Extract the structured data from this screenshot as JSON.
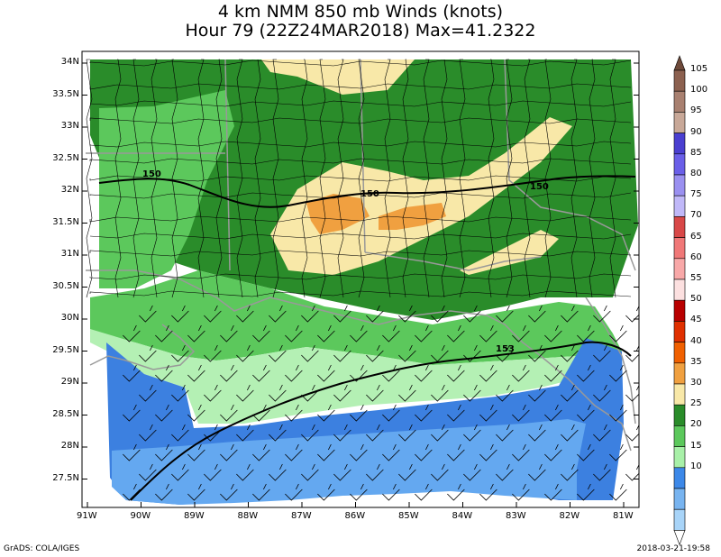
{
  "title": {
    "line1": "4 km NMM 850 mb Winds (knots)",
    "line2": "Hour 79 (22Z24MAR2018) Max=41.2322"
  },
  "footer": {
    "credit": "GrADS: COLA/IGES",
    "timestamp": "2018-03-21-19:58"
  },
  "axes": {
    "lat_labels": [
      "34N",
      "33.5N",
      "33N",
      "32.5N",
      "32N",
      "31.5N",
      "31N",
      "30.5N",
      "30N",
      "29.5N",
      "29N",
      "28.5N",
      "28N",
      "27.5N"
    ],
    "lon_labels": [
      "91W",
      "90W",
      "89W",
      "88W",
      "87W",
      "86W",
      "85W",
      "84W",
      "83W",
      "82W",
      "81W"
    ]
  },
  "contour_labels": [
    "150",
    "150",
    "150",
    "153"
  ],
  "colorbar": {
    "levels": [
      "105",
      "100",
      "95",
      "90",
      "85",
      "80",
      "75",
      "70",
      "65",
      "60",
      "55",
      "50",
      "45",
      "40",
      "35",
      "30",
      "25",
      "20",
      "15",
      "10"
    ],
    "colors": [
      "#6e4a3a",
      "#8c6150",
      "#a88070",
      "#c8a898",
      "#4a3fd0",
      "#6a5fe8",
      "#9a90f0",
      "#c0b8f8",
      "#d84848",
      "#f07878",
      "#f8a8a8",
      "#fce0e0",
      "#b80000",
      "#e03000",
      "#f06000",
      "#f0a040",
      "#f8e8a8",
      "#2a8c2a",
      "#5cc85c",
      "#a8f0a8",
      "#3c88e8",
      "#78b4f0",
      "#a8d4f8",
      "#ffffff"
    ]
  },
  "wind_colors": {
    "w10_15": "#a8d0f8",
    "w15_20": "#64a8f0",
    "w20_25": "#3c80e0",
    "w25_30": "#b4f0b4",
    "w30_35": "#5cc85c",
    "w35_40": "#2a8c2a",
    "w40_45": "#f8e8a8",
    "w45_50": "#f0a040"
  }
}
